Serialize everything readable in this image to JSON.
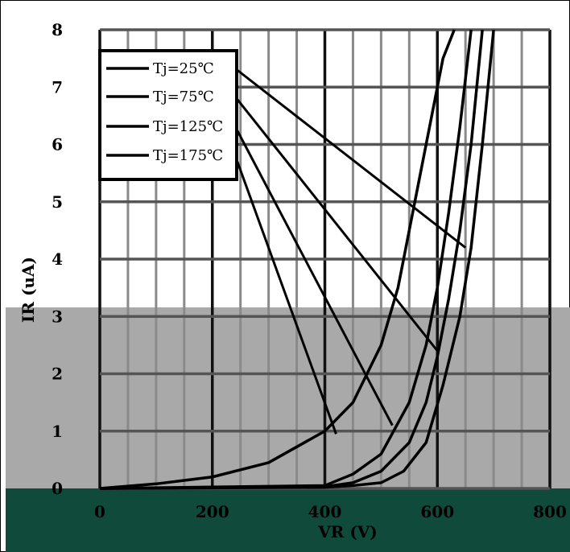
{
  "chart_data": {
    "type": "line",
    "title": "",
    "xlabel": "VR (V)",
    "ylabel": "IR (uA)",
    "xlim": [
      0,
      800
    ],
    "ylim": [
      0,
      8
    ],
    "x_ticks": [
      "0",
      "200",
      "400",
      "600",
      "800"
    ],
    "y_ticks": [
      "0",
      "1",
      "2",
      "3",
      "4",
      "5",
      "6",
      "7",
      "8"
    ],
    "grid": true,
    "legend_position": "top-left",
    "series": [
      {
        "name": "Tj=25℃",
        "x": [
          0,
          400,
          450,
          500,
          540,
          580,
          610,
          640,
          660,
          680,
          700
        ],
        "y": [
          0,
          0.02,
          0.05,
          0.1,
          0.3,
          0.8,
          1.8,
          3.0,
          4.2,
          6.0,
          8.0
        ]
      },
      {
        "name": "Tj=75℃",
        "x": [
          0,
          400,
          450,
          500,
          550,
          580,
          600,
          620,
          640,
          660,
          680
        ],
        "y": [
          0,
          0.03,
          0.1,
          0.3,
          0.8,
          1.5,
          2.3,
          3.3,
          4.5,
          6.0,
          8.0
        ]
      },
      {
        "name": "Tj=125℃",
        "x": [
          0,
          400,
          450,
          500,
          550,
          580,
          600,
          620,
          640,
          660
        ],
        "y": [
          0,
          0.05,
          0.25,
          0.6,
          1.5,
          2.5,
          3.5,
          4.8,
          6.3,
          8.0
        ]
      },
      {
        "name": "Tj=175℃",
        "x": [
          0,
          100,
          200,
          300,
          400,
          450,
          500,
          530,
          560,
          590,
          610,
          630
        ],
        "y": [
          0,
          0.08,
          0.2,
          0.45,
          1.0,
          1.5,
          2.5,
          3.5,
          5.0,
          6.5,
          7.5,
          8.0
        ]
      }
    ],
    "legend_leader_targets": [
      {
        "series": "Tj=25℃",
        "x": 650,
        "y": 4.2
      },
      {
        "series": "Tj=75℃",
        "x": 600,
        "y": 2.4
      },
      {
        "series": "Tj=125℃",
        "x": 520,
        "y": 1.1
      },
      {
        "series": "Tj=175℃",
        "x": 420,
        "y": 0.95
      }
    ]
  },
  "colors": {
    "background": "#ffffff",
    "grid_major": "#333333",
    "grid_minor": "#aaaaaa",
    "line": "#000000",
    "gray_band": "#a9a9a9",
    "dark_band": "#0f4a3a"
  }
}
